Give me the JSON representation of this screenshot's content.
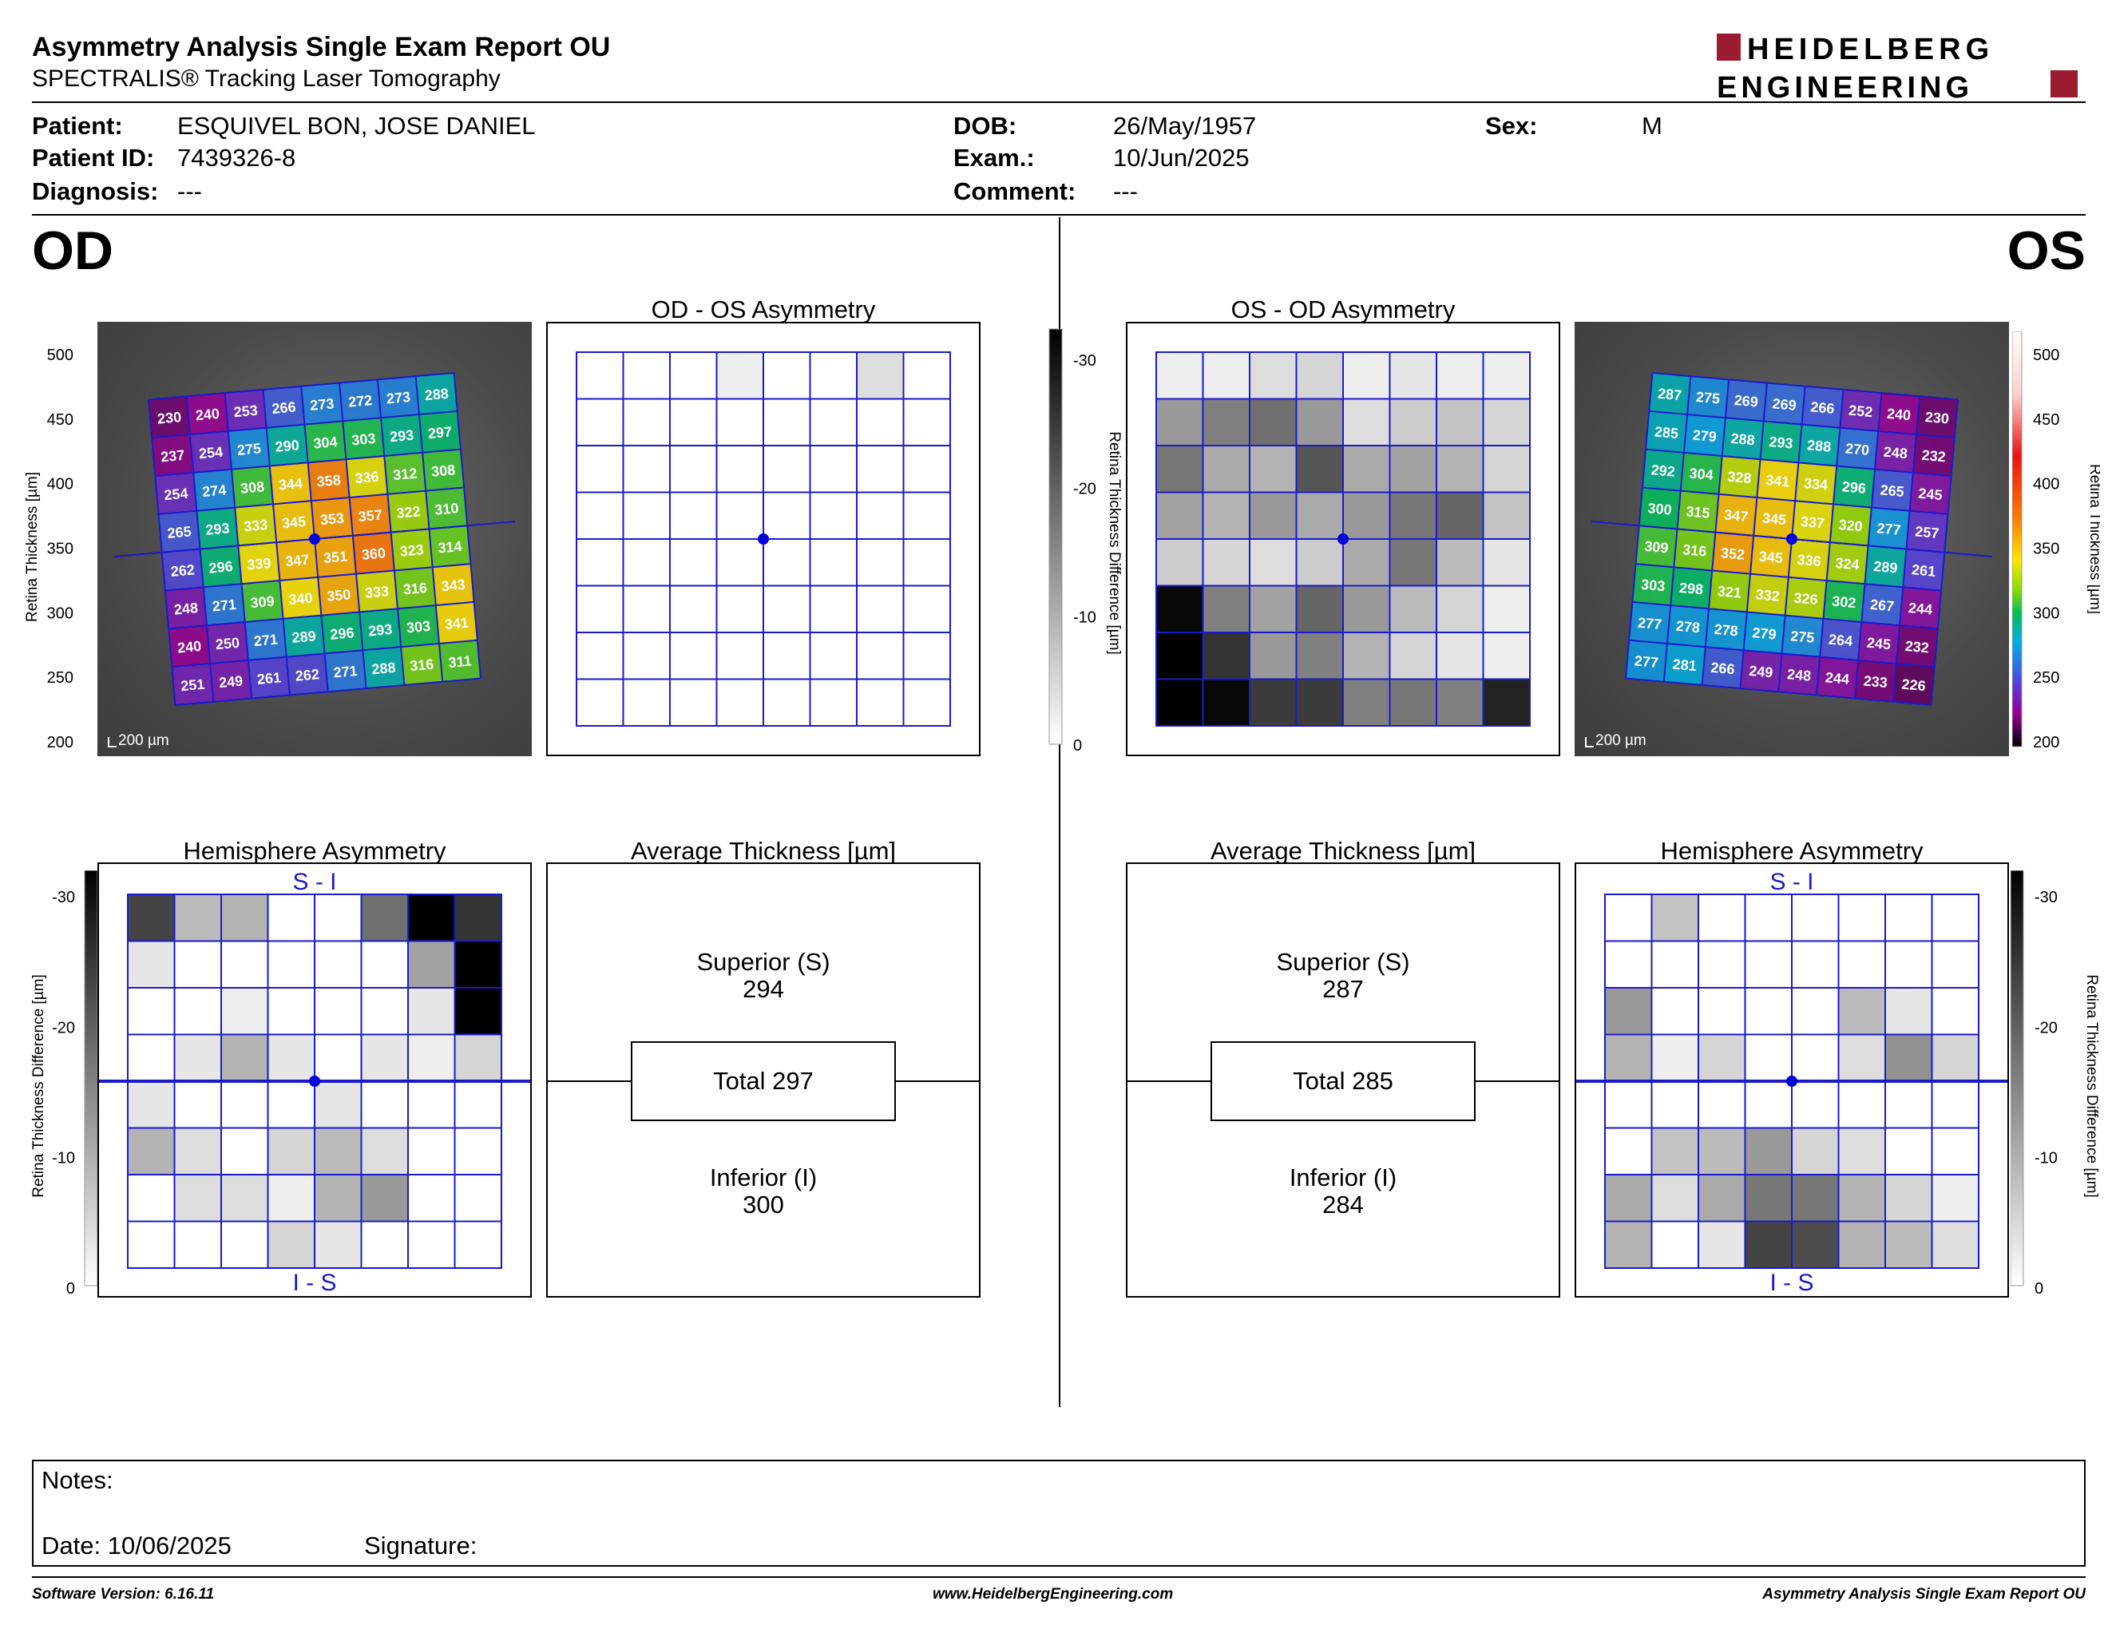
{
  "report": {
    "title": "Asymmetry Analysis Single Exam Report OU",
    "subtitle": "SPECTRALIS® Tracking Laser Tomography",
    "brand_line1": "HEIDELBERG",
    "brand_line2": "ENGINEERING"
  },
  "patient": {
    "patient_label": "Patient:",
    "patient": "ESQUIVEL BON, JOSE DANIEL",
    "id_label": "Patient ID:",
    "id": "7439326-8",
    "diagnosis_label": "Diagnosis:",
    "diagnosis": "---",
    "dob_label": "DOB:",
    "dob": "26/May/1957",
    "exam_label": "Exam.:",
    "exam": "10/Jun/2025",
    "comment_label": "Comment:",
    "comment": "---",
    "sex_label": "Sex:",
    "sex": "M"
  },
  "eyes": {
    "od": "OD",
    "os": "OS"
  },
  "panels": {
    "od_os_asym": "OD - OS Asymmetry",
    "os_od_asym": "OS - OD Asymmetry",
    "hemi": "Hemisphere Asymmetry",
    "avg": "Average Thickness [µm]",
    "si": "S - I",
    "is": "I - S",
    "scale_bar": "200 µm"
  },
  "colors": {
    "grid_line": "#1a1acc",
    "fovea": "#0000dd"
  },
  "scales": {
    "thickness_axis_label": "Retina Thickness [µm]",
    "thickness_ticks": [
      "500",
      "450",
      "400",
      "350",
      "300",
      "250",
      "200"
    ],
    "diff_axis_label": "Retina Thickness Difference [µm]",
    "diff_ticks": [
      "-30",
      "-20",
      "-10",
      "0"
    ]
  },
  "od_thickness": [
    [
      "230",
      "240",
      "253",
      "266",
      "273",
      "272",
      "273",
      "288"
    ],
    [
      "237",
      "254",
      "275",
      "290",
      "304",
      "303",
      "293",
      "297"
    ],
    [
      "254",
      "274",
      "308",
      "344",
      "358",
      "336",
      "312",
      "308"
    ],
    [
      "265",
      "293",
      "333",
      "345",
      "353",
      "357",
      "322",
      "310"
    ],
    [
      "262",
      "296",
      "339",
      "347",
      "351",
      "360",
      "323",
      "314"
    ],
    [
      "248",
      "271",
      "309",
      "340",
      "350",
      "333",
      "316",
      "343"
    ],
    [
      "240",
      "250",
      "271",
      "289",
      "296",
      "293",
      "303",
      "341"
    ],
    [
      "251",
      "249",
      "261",
      "262",
      "271",
      "288",
      "316",
      "311"
    ]
  ],
  "os_thickness": [
    [
      "287",
      "275",
      "269",
      "269",
      "266",
      "252",
      "240",
      "230"
    ],
    [
      "285",
      "279",
      "288",
      "293",
      "288",
      "270",
      "248",
      "232"
    ],
    [
      "292",
      "304",
      "328",
      "341",
      "334",
      "296",
      "265",
      "245"
    ],
    [
      "300",
      "315",
      "347",
      "345",
      "337",
      "320",
      "277",
      "257"
    ],
    [
      "309",
      "316",
      "352",
      "345",
      "336",
      "324",
      "289",
      "261"
    ],
    [
      "303",
      "298",
      "321",
      "332",
      "326",
      "302",
      "267",
      "244"
    ],
    [
      "277",
      "278",
      "278",
      "279",
      "275",
      "264",
      "245",
      "232"
    ],
    [
      "277",
      "281",
      "266",
      "249",
      "248",
      "244",
      "233",
      "226"
    ]
  ],
  "od_os_diff": [
    [
      0,
      0,
      0,
      2,
      0,
      0,
      4,
      0
    ],
    [
      0,
      0,
      0,
      0,
      0,
      0,
      0,
      0
    ],
    [
      0,
      0,
      0,
      0,
      0,
      0,
      0,
      0
    ],
    [
      0,
      0,
      0,
      0,
      0,
      0,
      0,
      0
    ],
    [
      0,
      0,
      0,
      0,
      0,
      0,
      0,
      0
    ],
    [
      0,
      0,
      0,
      0,
      0,
      0,
      0,
      0
    ],
    [
      0,
      0,
      0,
      0,
      0,
      0,
      0,
      0
    ],
    [
      0,
      0,
      0,
      0,
      0,
      0,
      0,
      0
    ]
  ],
  "os_od_diff": [
    [
      2,
      2,
      4,
      5,
      2,
      3,
      2,
      2
    ],
    [
      12,
      15,
      17,
      12,
      4,
      6,
      7,
      5
    ],
    [
      16,
      10,
      9,
      20,
      10,
      11,
      9,
      5
    ],
    [
      11,
      9,
      12,
      10,
      12,
      16,
      18,
      7
    ],
    [
      6,
      5,
      4,
      6,
      10,
      16,
      8,
      3
    ],
    [
      29,
      15,
      11,
      18,
      12,
      8,
      5,
      2
    ],
    [
      30,
      24,
      12,
      15,
      9,
      5,
      3,
      2
    ],
    [
      31,
      29,
      23,
      23,
      15,
      16,
      15,
      26
    ]
  ],
  "od_hemi_diff": [
    [
      22,
      8,
      9,
      0,
      0,
      17,
      30,
      24
    ],
    [
      3,
      0,
      0,
      0,
      0,
      0,
      11,
      31
    ],
    [
      0,
      0,
      2,
      0,
      0,
      0,
      3,
      31
    ],
    [
      0,
      3,
      9,
      3,
      0,
      3,
      2,
      5
    ],
    [
      3,
      0,
      0,
      0,
      3,
      0,
      0,
      0
    ],
    [
      9,
      4,
      0,
      5,
      8,
      4,
      0,
      0
    ],
    [
      0,
      4,
      4,
      2,
      9,
      12,
      0,
      0
    ],
    [
      0,
      0,
      0,
      5,
      3,
      0,
      0,
      0
    ]
  ],
  "os_hemi_diff": [
    [
      0,
      7,
      0,
      0,
      0,
      0,
      0,
      0
    ],
    [
      0,
      0,
      0,
      0,
      0,
      0,
      0,
      0
    ],
    [
      12,
      0,
      0,
      0,
      0,
      8,
      3,
      0
    ],
    [
      9,
      2,
      5,
      0,
      0,
      4,
      13,
      5
    ],
    [
      0,
      0,
      0,
      0,
      0,
      0,
      0,
      0
    ],
    [
      0,
      7,
      8,
      12,
      5,
      4,
      0,
      0
    ],
    [
      10,
      4,
      10,
      16,
      16,
      9,
      5,
      2
    ],
    [
      9,
      0,
      3,
      22,
      21,
      9,
      8,
      4
    ]
  ],
  "averages": {
    "od": {
      "superior_label": "Superior (S)",
      "superior": "294",
      "total": "Total 297",
      "inferior_label": "Inferior (I)",
      "inferior": "300"
    },
    "os": {
      "superior_label": "Superior (S)",
      "superior": "287",
      "total": "Total 285",
      "inferior_label": "Inferior (I)",
      "inferior": "284"
    }
  },
  "notes": {
    "notes_label": "Notes:",
    "date": "Date: 10/06/2025",
    "signature": "Signature:"
  },
  "footer": {
    "software": "Software Version: 6.16.11",
    "website": "www.HeidelbergEngineering.com",
    "report_name": "Asymmetry Analysis Single Exam Report OU"
  }
}
